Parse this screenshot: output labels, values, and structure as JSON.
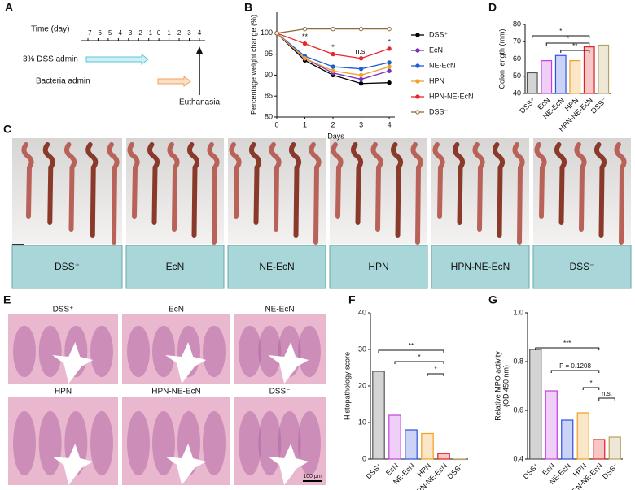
{
  "panels": [
    "A",
    "B",
    "C",
    "D",
    "E",
    "F",
    "G"
  ],
  "timeline": {
    "title": "Time (day)",
    "ticks": [
      "−7",
      "−6",
      "−5",
      "−4",
      "−3",
      "−2",
      "−1",
      "0",
      "1",
      "2",
      "3",
      "4"
    ],
    "rows": [
      "3% DSS admin",
      "Bacteria admin"
    ],
    "end": "Euthanasia"
  },
  "photos": {
    "labels": [
      "DSS⁺",
      "EcN",
      "NE-EcN",
      "HPN",
      "HPN-NE-EcN",
      "DSS⁻"
    ]
  },
  "histology": {
    "labels": [
      "DSS⁺",
      "EcN",
      "NE-EcN",
      "HPN",
      "HPN-NE-EcN",
      "DSS⁻"
    ],
    "scale_bar": "100 μm"
  },
  "chart_data": [
    {
      "type": "line",
      "xlabel": "Days",
      "ylabel": "Percentage weight change (%)",
      "x": [
        0,
        1,
        2,
        3,
        4
      ],
      "xlim": [
        0,
        4.2
      ],
      "xticks": [
        0,
        1,
        2,
        3,
        4
      ],
      "ylim": [
        80,
        105
      ],
      "yticks": [
        80,
        85,
        90,
        95,
        100
      ],
      "legend": "right",
      "series": [
        {
          "name": "DSS⁺",
          "color": "#000000",
          "values": [
            100,
            93.5,
            90,
            88,
            88.2
          ]
        },
        {
          "name": "EcN",
          "color": "#7b2fbf",
          "values": [
            100,
            94,
            90.5,
            89,
            91
          ]
        },
        {
          "name": "NE-EcN",
          "color": "#1f5fd6",
          "values": [
            100,
            94.5,
            92,
            91.5,
            93
          ]
        },
        {
          "name": "HPN",
          "color": "#f0a030",
          "values": [
            100,
            94,
            91,
            90,
            92
          ]
        },
        {
          "name": "HPN-NE-EcN",
          "color": "#e8262b",
          "values": [
            100,
            97.5,
            95,
            94,
            96.3
          ]
        },
        {
          "name": "DSS⁻",
          "color": "#8b6d3a",
          "values": [
            100,
            101,
            101,
            101,
            101
          ]
        }
      ],
      "annotations": [
        {
          "text": "**",
          "x": 1
        },
        {
          "text": "*",
          "x": 2
        },
        {
          "text": "n.s.",
          "x": 3
        },
        {
          "text": "*",
          "x": 4
        }
      ]
    },
    {
      "type": "bar",
      "ylabel": "Colon length (mm)",
      "categories": [
        "DSS⁺",
        "EcN",
        "NE-EcN",
        "HPN",
        "HPN-NE-EcN",
        "DSS⁻"
      ],
      "values": [
        52,
        59,
        62,
        59,
        67,
        68
      ],
      "colors": [
        "#555555",
        "#c040e0",
        "#3050e0",
        "#f0a020",
        "#e02020",
        "#b8a060"
      ],
      "ylim": [
        40,
        80
      ],
      "yticks": [
        40,
        50,
        60,
        70,
        80
      ],
      "annotations": [
        {
          "text": "*",
          "between": [
            0,
            4
          ]
        },
        {
          "text": "*",
          "between": [
            1,
            4
          ]
        },
        {
          "text": "**",
          "between": [
            2,
            4
          ]
        }
      ]
    },
    {
      "type": "bar",
      "ylabel": "Histopathology score",
      "categories": [
        "DSS⁺",
        "EcN",
        "NE-EcN",
        "HPN",
        "HPN-NE-EcN",
        "DSS⁻"
      ],
      "values": [
        24,
        12,
        8,
        7,
        1.5,
        0
      ],
      "colors": [
        "#555555",
        "#c040e0",
        "#3050e0",
        "#f0a020",
        "#e02020",
        "#b8a060"
      ],
      "ylim": [
        0,
        40
      ],
      "yticks": [
        0,
        10,
        20,
        30,
        40
      ],
      "annotations": [
        {
          "text": "**",
          "between": [
            0,
            4
          ]
        },
        {
          "text": "*",
          "between": [
            1,
            4
          ]
        },
        {
          "text": "*",
          "between": [
            3,
            4
          ]
        }
      ]
    },
    {
      "type": "bar",
      "ylabel": [
        "Relative MPO activity",
        "(OD 450 nm)"
      ],
      "categories": [
        "DSS⁺",
        "EcN",
        "NE-EcN",
        "HPN",
        "HPN-NE-EcN",
        "DSS⁻"
      ],
      "values": [
        0.85,
        0.68,
        0.56,
        0.59,
        0.48,
        0.49
      ],
      "colors": [
        "#555555",
        "#c040e0",
        "#3050e0",
        "#f0a020",
        "#e02020",
        "#b8a060"
      ],
      "ylim": [
        0.4,
        1
      ],
      "yticks": [
        0.4,
        0.6,
        0.8,
        {
          "value": 1,
          "label": "1.0"
        }
      ],
      "annotations": [
        {
          "text": "***",
          "between": [
            0,
            4
          ]
        },
        {
          "text": "P = 0.1208",
          "between": [
            1,
            4
          ]
        },
        {
          "text": "*",
          "between": [
            3,
            4
          ]
        },
        {
          "text": "n.s.",
          "between": [
            4,
            5
          ]
        }
      ]
    }
  ]
}
